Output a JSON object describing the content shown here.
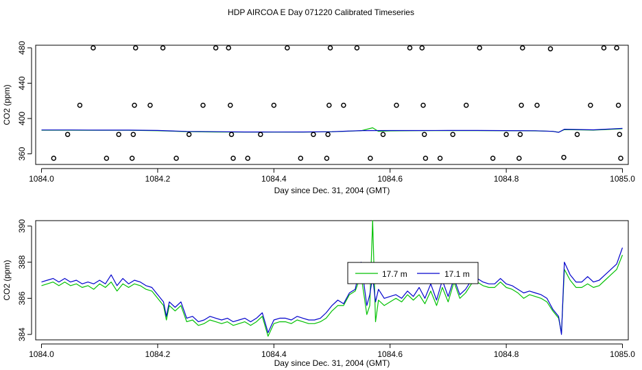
{
  "title": "HDP AIRCOA E  Day 071220  Calibrated Timeseries",
  "chart_data": [
    {
      "type": "scatter",
      "xlabel": "Day since Dec. 31, 2004 (GMT)",
      "ylabel": "CO2 (ppm)",
      "xlim": [
        1083.99,
        1085.01
      ],
      "ylim": [
        348,
        483
      ],
      "xticks": [
        1084.0,
        1084.2,
        1084.4,
        1084.6,
        1084.8,
        1085.0
      ],
      "xtick_labels": [
        "1084.0",
        "1084.2",
        "1084.4",
        "1084.6",
        "1084.8",
        "1085.0"
      ],
      "yticks": [
        360,
        400,
        440,
        480
      ],
      "ytick_labels": [
        "360",
        "400",
        "440",
        "480"
      ],
      "grid": false,
      "colors": {
        "series_1": "#00c000",
        "series_2": "#0000cc",
        "points": "#000000"
      },
      "points": {
        "x": [
          1084.021,
          1084.045,
          1084.066,
          1084.089,
          1084.112,
          1084.133,
          1084.156,
          1084.158,
          1084.16,
          1084.162,
          1084.187,
          1084.209,
          1084.232,
          1084.254,
          1084.278,
          1084.3,
          1084.322,
          1084.325,
          1084.327,
          1084.33,
          1084.355,
          1084.377,
          1084.4,
          1084.423,
          1084.446,
          1084.468,
          1084.491,
          1084.493,
          1084.495,
          1084.497,
          1084.52,
          1084.543,
          1084.566,
          1084.588,
          1084.611,
          1084.634,
          1084.655,
          1084.657,
          1084.659,
          1084.661,
          1084.686,
          1084.708,
          1084.731,
          1084.754,
          1084.777,
          1084.8,
          1084.822,
          1084.824,
          1084.826,
          1084.828,
          1084.853,
          1084.876,
          1084.899,
          1084.922,
          1084.945,
          1084.968,
          1084.99,
          1084.993,
          1084.995,
          1084.997
        ],
        "y": [
          355,
          382,
          415,
          480,
          355,
          382,
          355,
          382,
          415,
          480,
          415,
          480,
          355,
          382,
          415,
          480,
          480,
          415,
          382,
          355,
          355,
          382,
          415,
          480,
          355,
          382,
          355,
          382,
          415,
          480,
          415,
          480,
          355,
          382,
          415,
          480,
          480,
          415,
          382,
          355,
          355,
          382,
          415,
          480,
          355,
          382,
          355,
          382,
          415,
          480,
          415,
          479,
          356,
          382,
          415,
          480,
          480,
          415,
          382,
          355
        ]
      },
      "series": [
        {
          "x": [
            1084.0,
            1084.05,
            1084.1,
            1084.15,
            1084.2,
            1084.25,
            1084.3,
            1084.35,
            1084.4,
            1084.45,
            1084.5,
            1084.55,
            1084.57,
            1084.58,
            1084.6,
            1084.65,
            1084.7,
            1084.75,
            1084.8,
            1084.85,
            1084.88,
            1084.89,
            1084.9,
            1084.95,
            1085.0
          ],
          "y": [
            386.8,
            386.8,
            386.6,
            386.6,
            386.2,
            385.2,
            384.8,
            384.6,
            384.6,
            384.6,
            385.0,
            386.2,
            389.5,
            385.5,
            386.0,
            386.3,
            386.3,
            386.3,
            386.2,
            386.0,
            385.5,
            384.5,
            387.4,
            386.9,
            388.4
          ]
        },
        {
          "x": [
            1084.0,
            1084.05,
            1084.1,
            1084.15,
            1084.2,
            1084.25,
            1084.3,
            1084.35,
            1084.4,
            1084.45,
            1084.5,
            1084.55,
            1084.6,
            1084.65,
            1084.7,
            1084.75,
            1084.8,
            1084.85,
            1084.88,
            1084.89,
            1084.9,
            1084.95,
            1085.0
          ],
          "y": [
            387.0,
            387.0,
            386.9,
            386.9,
            386.5,
            385.4,
            385.1,
            384.8,
            384.7,
            384.8,
            385.1,
            386.3,
            386.4,
            386.4,
            386.5,
            386.5,
            386.3,
            386.2,
            385.5,
            384.3,
            387.9,
            387.2,
            388.8
          ]
        }
      ]
    },
    {
      "type": "line",
      "xlabel": "Day since Dec. 31, 2004 (GMT)",
      "ylabel": "CO2 (ppm)",
      "xlim": [
        1083.99,
        1085.01
      ],
      "ylim": [
        383.7,
        390.3
      ],
      "xticks": [
        1084.0,
        1084.2,
        1084.4,
        1084.6,
        1084.8,
        1085.0
      ],
      "xtick_labels": [
        "1084.0",
        "1084.2",
        "1084.4",
        "1084.6",
        "1084.8",
        "1085.0"
      ],
      "yticks": [
        384,
        386,
        388,
        390
      ],
      "ytick_labels": [
        "384",
        "386",
        "388",
        "390"
      ],
      "grid": false,
      "legend_placement": "center",
      "series": [
        {
          "name": "17.7 m",
          "color": "#00c000",
          "x": [
            1084.0,
            1084.01,
            1084.02,
            1084.03,
            1084.04,
            1084.05,
            1084.06,
            1084.07,
            1084.08,
            1084.09,
            1084.1,
            1084.11,
            1084.12,
            1084.13,
            1084.14,
            1084.15,
            1084.16,
            1084.17,
            1084.18,
            1084.19,
            1084.2,
            1084.21,
            1084.215,
            1084.22,
            1084.23,
            1084.24,
            1084.25,
            1084.26,
            1084.27,
            1084.28,
            1084.29,
            1084.3,
            1084.31,
            1084.32,
            1084.33,
            1084.34,
            1084.35,
            1084.36,
            1084.37,
            1084.38,
            1084.39,
            1084.4,
            1084.41,
            1084.42,
            1084.43,
            1084.44,
            1084.45,
            1084.46,
            1084.47,
            1084.48,
            1084.49,
            1084.5,
            1084.51,
            1084.52,
            1084.53,
            1084.54,
            1084.55,
            1084.56,
            1084.565,
            1084.57,
            1084.575,
            1084.58,
            1084.59,
            1084.6,
            1084.61,
            1084.62,
            1084.63,
            1084.64,
            1084.65,
            1084.66,
            1084.67,
            1084.68,
            1084.69,
            1084.7,
            1084.71,
            1084.72,
            1084.73,
            1084.74,
            1084.75,
            1084.76,
            1084.77,
            1084.78,
            1084.79,
            1084.8,
            1084.81,
            1084.82,
            1084.83,
            1084.84,
            1084.85,
            1084.86,
            1084.87,
            1084.88,
            1084.89,
            1084.895,
            1084.9,
            1084.91,
            1084.92,
            1084.93,
            1084.94,
            1084.95,
            1084.96,
            1084.97,
            1084.98,
            1084.99,
            1085.0
          ],
          "y": [
            386.7,
            386.8,
            386.9,
            386.7,
            386.9,
            386.7,
            386.8,
            386.6,
            386.7,
            386.5,
            386.8,
            386.6,
            386.9,
            386.4,
            386.8,
            386.6,
            386.8,
            386.7,
            386.5,
            386.4,
            386.0,
            385.6,
            384.8,
            385.6,
            385.3,
            385.6,
            384.7,
            384.8,
            384.5,
            384.6,
            384.8,
            384.7,
            384.6,
            384.7,
            384.5,
            384.6,
            384.7,
            384.5,
            384.7,
            385.0,
            383.9,
            384.6,
            384.7,
            384.7,
            384.6,
            384.8,
            384.7,
            384.6,
            384.6,
            384.7,
            384.9,
            385.3,
            385.6,
            385.6,
            386.2,
            386.4,
            387.3,
            385.1,
            385.6,
            390.3,
            384.7,
            385.9,
            385.6,
            385.8,
            386.0,
            385.8,
            386.2,
            385.9,
            386.2,
            385.7,
            386.4,
            385.6,
            386.6,
            385.8,
            386.9,
            386.0,
            386.3,
            386.8,
            386.9,
            386.7,
            386.6,
            386.6,
            386.9,
            386.6,
            386.5,
            386.3,
            386.0,
            386.2,
            386.1,
            386.0,
            385.8,
            385.3,
            384.9,
            384.1,
            387.6,
            387.0,
            386.6,
            386.6,
            386.8,
            386.6,
            386.7,
            387.0,
            387.3,
            387.6,
            388.4
          ]
        },
        {
          "name": "17.1 m",
          "color": "#0000cc",
          "x": [
            1084.0,
            1084.01,
            1084.02,
            1084.03,
            1084.04,
            1084.05,
            1084.06,
            1084.07,
            1084.08,
            1084.09,
            1084.1,
            1084.11,
            1084.12,
            1084.13,
            1084.14,
            1084.15,
            1084.16,
            1084.17,
            1084.18,
            1084.19,
            1084.2,
            1084.21,
            1084.215,
            1084.22,
            1084.23,
            1084.24,
            1084.25,
            1084.26,
            1084.27,
            1084.28,
            1084.29,
            1084.3,
            1084.31,
            1084.32,
            1084.33,
            1084.34,
            1084.35,
            1084.36,
            1084.37,
            1084.38,
            1084.39,
            1084.4,
            1084.41,
            1084.42,
            1084.43,
            1084.44,
            1084.45,
            1084.46,
            1084.47,
            1084.48,
            1084.49,
            1084.5,
            1084.51,
            1084.52,
            1084.53,
            1084.54,
            1084.55,
            1084.56,
            1084.565,
            1084.57,
            1084.575,
            1084.58,
            1084.59,
            1084.6,
            1084.61,
            1084.62,
            1084.63,
            1084.64,
            1084.65,
            1084.66,
            1084.67,
            1084.68,
            1084.69,
            1084.7,
            1084.71,
            1084.72,
            1084.73,
            1084.74,
            1084.75,
            1084.76,
            1084.77,
            1084.78,
            1084.79,
            1084.8,
            1084.81,
            1084.82,
            1084.83,
            1084.84,
            1084.85,
            1084.86,
            1084.87,
            1084.88,
            1084.89,
            1084.895,
            1084.9,
            1084.91,
            1084.92,
            1084.93,
            1084.94,
            1084.95,
            1084.96,
            1084.97,
            1084.98,
            1084.99,
            1085.0
          ],
          "y": [
            386.9,
            387.0,
            387.1,
            386.9,
            387.1,
            386.9,
            387.0,
            386.8,
            386.9,
            386.8,
            387.0,
            386.8,
            387.3,
            386.7,
            387.1,
            386.8,
            387.0,
            386.9,
            386.7,
            386.6,
            386.2,
            385.8,
            385.0,
            385.8,
            385.5,
            385.8,
            384.9,
            385.0,
            384.7,
            384.8,
            385.0,
            384.9,
            384.8,
            384.9,
            384.7,
            384.8,
            384.9,
            384.7,
            384.9,
            385.2,
            384.1,
            384.8,
            384.9,
            384.9,
            384.8,
            385.0,
            384.9,
            384.8,
            384.8,
            384.9,
            385.2,
            385.6,
            385.9,
            385.7,
            386.3,
            386.5,
            388.0,
            385.6,
            386.2,
            387.2,
            385.8,
            386.5,
            386.0,
            386.1,
            386.2,
            386.0,
            386.4,
            386.1,
            386.6,
            386.0,
            386.8,
            385.9,
            387.0,
            386.1,
            387.1,
            386.2,
            386.5,
            387.0,
            387.1,
            386.9,
            386.8,
            386.8,
            387.1,
            386.8,
            386.7,
            386.5,
            386.3,
            386.4,
            386.3,
            386.2,
            386.0,
            385.4,
            385.0,
            384.0,
            388.0,
            387.3,
            386.9,
            386.9,
            387.2,
            386.9,
            387.0,
            387.3,
            387.6,
            387.9,
            388.8
          ]
        }
      ]
    }
  ]
}
